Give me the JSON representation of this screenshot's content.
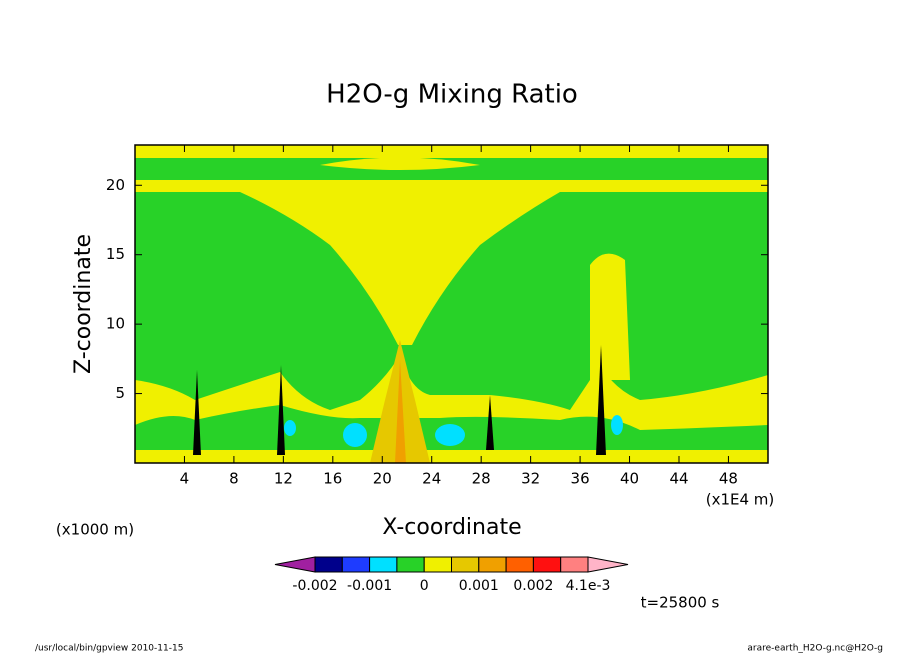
{
  "chart_data": {
    "type": "contour",
    "title": "H2O-g Mixing Ratio",
    "x_label": "X-coordinate",
    "y_label": "Z-coordinate",
    "x_unit_left": "(x1000 m)",
    "x_unit_right": "(x1E4 m)",
    "xlim": [
      0,
      51.2
    ],
    "xticks": [
      4,
      8,
      12,
      16,
      20,
      24,
      28,
      32,
      36,
      40,
      44,
      48
    ],
    "ylim": [
      0,
      22.9
    ],
    "yticks": [
      5,
      10,
      15,
      20
    ],
    "colorbar": {
      "levels": [
        -0.002,
        -0.0015,
        -0.001,
        -0.0005,
        0,
        0.0005,
        0.001,
        0.0015,
        0.002,
        0.003,
        0.0041
      ],
      "colors": [
        "#a020a0",
        "#00008b",
        "#1e3cff",
        "#00e0ff",
        "#28d228",
        "#f0f000",
        "#e6c800",
        "#f0a000",
        "#ff6000",
        "#ff1010",
        "#ff8080",
        "#ffb4c8"
      ],
      "ticks": [
        -0.002,
        -0.001,
        0,
        0.001,
        0.002,
        {
          "value": 0.0041,
          "label": "4.1e-3"
        }
      ]
    },
    "time_label": "t=25800 s",
    "footer_left": "/usr/local/bin/gpview  2010-11-15",
    "footer_right": "arare-earth_H2O-g.nc@H2O-g"
  }
}
